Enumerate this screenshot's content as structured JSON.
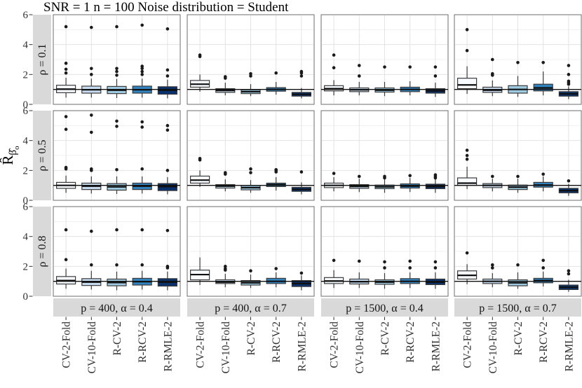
{
  "title": "SNR = 1 n = 100 Noise distribution = Student",
  "y_axis": {
    "base": "R̂",
    "sub": "β̂",
    "subsub": "o"
  },
  "colors": {
    "strip_bg": "#d9d9d9",
    "panel_bg": "#ffffff",
    "panel_border": "#6e6e6e",
    "grid_major": "#e3e3e3",
    "grid_minor": "#f1f1f1",
    "box_stroke": "#3a3a3a",
    "median": "#101010",
    "outlier": "#1a1a1a",
    "reference_line": "#111111",
    "tick": "#333333",
    "box_fills": [
      "#f7fbff",
      "#c6dbef",
      "#9ecae1",
      "#3182bd",
      "#08306b"
    ]
  },
  "chart_data": {
    "type": "boxplot-facet-grid",
    "title": "SNR = 1 n = 100 Noise distribution = Student",
    "ylabel": "R̂_β̂o",
    "ylim": [
      0,
      6
    ],
    "y_ticks": [
      0,
      2,
      4,
      6
    ],
    "y_minor": [
      1,
      3,
      5
    ],
    "reference_line_y": 1,
    "grid": true,
    "categories": [
      "CV-2-Fold",
      "CV-10-Fold",
      "R-CV-2",
      "R-RCV-2",
      "R-RMLE-2"
    ],
    "row_facets": [
      "ρ = 0.1",
      "ρ = 0.5",
      "ρ = 0.8"
    ],
    "col_facets": [
      "p = 400, α = 0.4",
      "p = 400, α = 0.7",
      "p = 1500, α = 0.4",
      "p = 1500, α = 0.7"
    ],
    "panels": [
      [
        [
          [
            0.45,
            0.78,
            1.02,
            1.28,
            1.78,
            [
              2.1,
              2.35,
              2.75,
              5.2
            ]
          ],
          [
            0.45,
            0.75,
            0.98,
            1.22,
            1.72,
            [
              2.0,
              2.4,
              5.15
            ]
          ],
          [
            0.42,
            0.72,
            0.95,
            1.2,
            1.7,
            [
              1.95,
              2.2,
              2.4,
              5.2
            ]
          ],
          [
            0.45,
            0.75,
            0.98,
            1.22,
            1.72,
            [
              2.0,
              2.2,
              2.4,
              2.55,
              5.3
            ]
          ],
          [
            0.4,
            0.68,
            0.95,
            1.18,
            1.65,
            [
              1.9,
              2.3,
              5.05
            ]
          ]
        ],
        [
          [
            0.85,
            1.15,
            1.35,
            1.6,
            2.0,
            [
              3.2,
              3.3
            ]
          ],
          [
            0.6,
            0.8,
            0.93,
            1.05,
            1.45,
            [
              1.75,
              1.85
            ]
          ],
          [
            0.55,
            0.72,
            0.85,
            0.98,
            1.35,
            [
              1.9,
              2.05
            ]
          ],
          [
            0.65,
            0.88,
            1.0,
            1.12,
            1.5,
            [
              2.1
            ]
          ],
          [
            0.4,
            0.55,
            0.67,
            0.8,
            1.1,
            [
              1.9,
              2.1,
              2.2
            ]
          ]
        ],
        [
          [
            0.6,
            0.9,
            1.05,
            1.25,
            1.62,
            [
              2.45,
              3.3
            ]
          ],
          [
            0.6,
            0.85,
            0.98,
            1.1,
            1.5,
            [
              1.9,
              2.6
            ]
          ],
          [
            0.55,
            0.82,
            0.95,
            1.1,
            1.5,
            [
              2.5
            ]
          ],
          [
            0.6,
            0.85,
            1.0,
            1.15,
            1.55,
            [
              2.5
            ]
          ],
          [
            0.5,
            0.75,
            0.9,
            1.05,
            1.45,
            [
              1.9,
              2.5
            ]
          ]
        ],
        [
          [
            0.7,
            1.05,
            1.3,
            1.75,
            2.55,
            [
              3.6,
              5.0
            ]
          ],
          [
            0.55,
            0.8,
            0.95,
            1.15,
            1.6,
            [
              1.95,
              2.05,
              3.0
            ]
          ],
          [
            0.5,
            0.75,
            1.0,
            1.25,
            1.9,
            [
              2.8
            ]
          ],
          [
            0.6,
            0.9,
            1.1,
            1.35,
            2.2,
            [
              2.8
            ]
          ],
          [
            0.35,
            0.55,
            0.7,
            0.85,
            1.2,
            [
              1.35,
              1.45,
              1.55,
              2.0,
              2.6
            ]
          ]
        ]
      ],
      [
        [
          [
            0.5,
            0.8,
            1.0,
            1.2,
            1.65,
            [
              2.1,
              2.2,
              4.75,
              5.6
            ]
          ],
          [
            0.45,
            0.72,
            0.95,
            1.15,
            1.6,
            [
              2.0,
              2.1,
              4.55,
              5.7
            ]
          ],
          [
            0.42,
            0.68,
            0.9,
            1.12,
            1.6,
            [
              2.05,
              4.95,
              5.3
            ]
          ],
          [
            0.45,
            0.72,
            0.95,
            1.15,
            1.6,
            [
              2.1,
              4.9,
              5.25
            ]
          ],
          [
            0.4,
            0.65,
            0.92,
            1.12,
            1.55,
            [
              2.0,
              4.7,
              5.0
            ]
          ]
        ],
        [
          [
            0.9,
            1.15,
            1.35,
            1.62,
            2.0,
            [
              2.7,
              2.8
            ]
          ],
          [
            0.6,
            0.82,
            0.95,
            1.05,
            1.4,
            [
              1.75,
              1.85
            ]
          ],
          [
            0.5,
            0.7,
            0.85,
            1.0,
            1.35,
            [
              1.85,
              2.1
            ]
          ],
          [
            0.65,
            0.92,
            1.05,
            1.15,
            1.55,
            [
              1.9,
              2.0,
              2.05
            ]
          ],
          [
            0.4,
            0.6,
            0.73,
            0.87,
            1.2,
            [
              1.9
            ]
          ]
        ],
        [
          [
            0.6,
            0.85,
            1.0,
            1.15,
            1.55,
            [
              1.8
            ]
          ],
          [
            0.55,
            0.8,
            0.93,
            1.05,
            1.45,
            [
              1.6
            ]
          ],
          [
            0.5,
            0.78,
            0.9,
            1.02,
            1.4,
            [
              1.5,
              1.6
            ]
          ],
          [
            0.55,
            0.82,
            0.95,
            1.1,
            1.5,
            [
              1.65
            ]
          ],
          [
            0.5,
            0.78,
            0.92,
            1.08,
            1.45,
            [
              1.5,
              1.6,
              1.7
            ]
          ]
        ],
        [
          [
            0.75,
            1.0,
            1.15,
            1.5,
            2.25,
            [
              2.75,
              3.0,
              3.35
            ]
          ],
          [
            0.6,
            0.85,
            1.0,
            1.12,
            1.45,
            [
              1.6
            ]
          ],
          [
            0.5,
            0.72,
            0.88,
            1.02,
            1.45,
            [
              1.6
            ]
          ],
          [
            0.6,
            0.88,
            1.02,
            1.2,
            1.6,
            [
              1.75
            ]
          ],
          [
            0.3,
            0.5,
            0.65,
            0.8,
            1.1,
            [
              1.3
            ]
          ]
        ]
      ],
      [
        [
          [
            0.5,
            0.82,
            1.05,
            1.32,
            1.85,
            [
              2.45,
              4.45
            ]
          ],
          [
            0.45,
            0.72,
            0.95,
            1.18,
            1.7,
            [
              2.1,
              4.35
            ]
          ],
          [
            0.4,
            0.7,
            0.92,
            1.15,
            1.65,
            [
              2.1,
              4.45
            ]
          ],
          [
            0.45,
            0.75,
            0.98,
            1.2,
            1.7,
            [
              2.1,
              4.45
            ]
          ],
          [
            0.4,
            0.68,
            0.95,
            1.18,
            1.65,
            [
              1.9,
              2.0,
              4.4
            ]
          ]
        ],
        [
          [
            0.75,
            1.1,
            1.45,
            1.75,
            2.6,
            []
          ],
          [
            0.6,
            0.85,
            0.95,
            1.1,
            1.5,
            [
              1.75,
              1.85,
              2.0
            ]
          ],
          [
            0.55,
            0.75,
            0.9,
            1.05,
            1.45,
            [
              1.7
            ]
          ],
          [
            0.6,
            0.85,
            1.0,
            1.2,
            1.6,
            [
              1.85
            ]
          ],
          [
            0.4,
            0.65,
            0.85,
            1.05,
            1.4,
            [
              1.55
            ]
          ]
        ],
        [
          [
            0.55,
            0.85,
            1.02,
            1.25,
            1.75,
            [
              2.4
            ]
          ],
          [
            0.55,
            0.82,
            0.97,
            1.15,
            1.6,
            [
              2.35
            ]
          ],
          [
            0.5,
            0.8,
            0.95,
            1.1,
            1.55,
            [
              1.9,
              2.3
            ]
          ],
          [
            0.55,
            0.85,
            1.0,
            1.18,
            1.6,
            [
              1.9,
              2.35
            ]
          ],
          [
            0.5,
            0.78,
            0.95,
            1.15,
            1.6,
            [
              1.9,
              2.3
            ]
          ]
        ],
        [
          [
            0.8,
            1.15,
            1.4,
            1.7,
            2.15,
            [
              2.9
            ]
          ],
          [
            0.6,
            0.85,
            1.0,
            1.15,
            1.55,
            [
              1.9,
              2.1
            ]
          ],
          [
            0.5,
            0.7,
            0.9,
            1.1,
            1.6,
            [
              2.1
            ]
          ],
          [
            0.65,
            0.9,
            1.05,
            1.2,
            1.65,
            [
              1.9,
              2.4
            ]
          ],
          [
            0.3,
            0.45,
            0.6,
            0.75,
            1.1,
            [
              1.5,
              1.7
            ]
          ]
        ]
      ]
    ]
  }
}
